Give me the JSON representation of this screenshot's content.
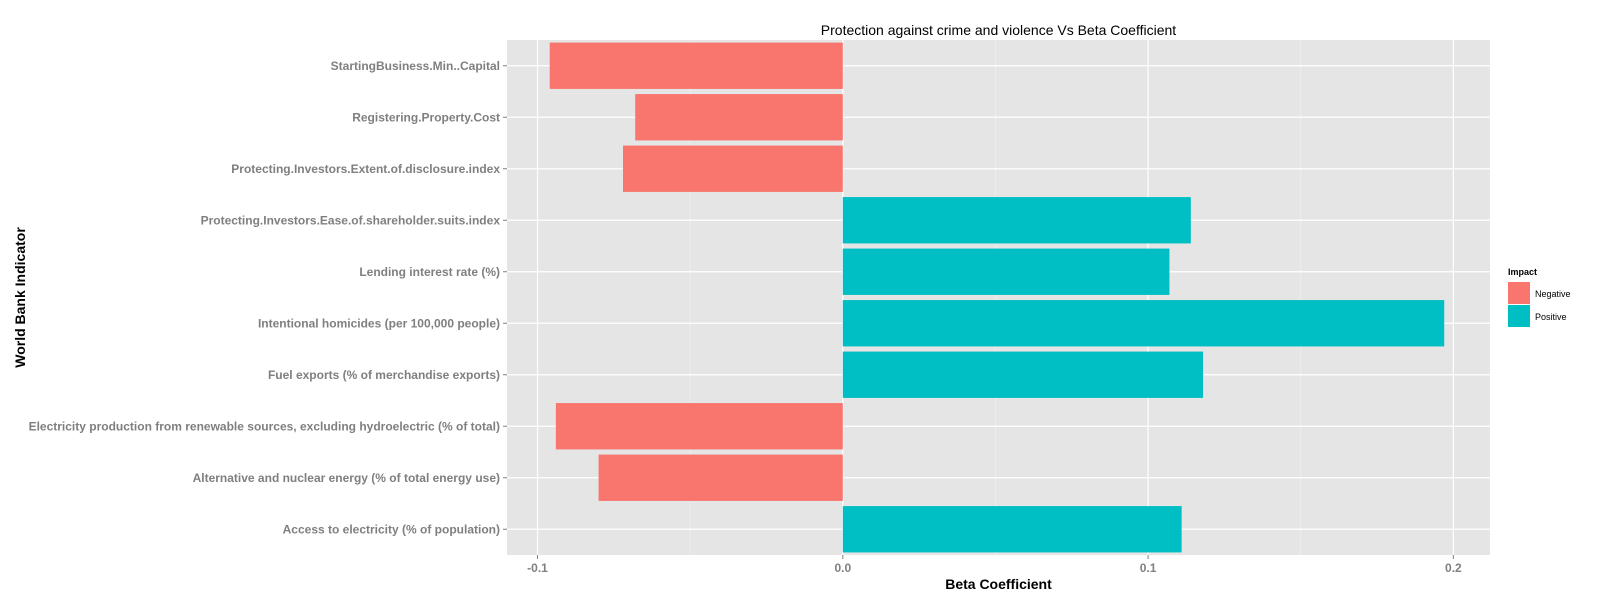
{
  "chart_data": {
    "type": "bar",
    "orientation": "horizontal",
    "title": "Protection against crime and violence Vs Beta Coefficient",
    "xlabel": "Beta Coefficient",
    "ylabel": "World Bank Indicator",
    "xlim": [
      -0.11,
      0.212
    ],
    "x_ticks": [
      -0.1,
      0.0,
      0.1,
      0.2
    ],
    "x_tick_labels": [
      "-0.1",
      "0.0",
      "0.1",
      "0.2"
    ],
    "grid": true,
    "categories": [
      "StartingBusiness.Min..Capital",
      "Registering.Property.Cost",
      "Protecting.Investors.Extent.of.disclosure.index",
      "Protecting.Investors.Ease.of.shareholder.suits.index",
      "Lending interest rate (%)",
      "Intentional homicides (per 100,000 people)",
      "Fuel exports (% of merchandise exports)",
      "Electricity production from renewable sources, excluding hydroelectric (% of total)",
      "Alternative and nuclear energy (% of total energy use)",
      "Access to electricity (% of population)"
    ],
    "values": [
      -0.096,
      -0.068,
      -0.072,
      0.114,
      0.107,
      0.197,
      0.118,
      -0.094,
      -0.08,
      0.111
    ],
    "impact": [
      "Negative",
      "Negative",
      "Negative",
      "Positive",
      "Positive",
      "Positive",
      "Positive",
      "Negative",
      "Negative",
      "Positive"
    ],
    "legend": {
      "title": "Impact",
      "position": "right",
      "entries": [
        {
          "label": "Negative",
          "color": "#F8766D"
        },
        {
          "label": "Positive",
          "color": "#00BFC4"
        }
      ]
    },
    "colors": {
      "panel_background": "#E5E5E5",
      "grid_major": "#FFFFFF",
      "grid_minor": "#F2F2F2"
    }
  }
}
